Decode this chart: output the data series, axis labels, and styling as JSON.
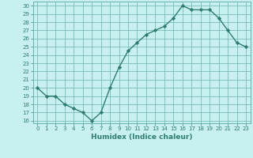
{
  "x": [
    0,
    1,
    2,
    3,
    4,
    5,
    6,
    7,
    8,
    9,
    10,
    11,
    12,
    13,
    14,
    15,
    16,
    17,
    18,
    19,
    20,
    21,
    22,
    23
  ],
  "y": [
    20,
    19,
    19,
    18,
    17.5,
    17,
    16,
    17,
    20,
    22.5,
    24.5,
    25.5,
    26.5,
    27,
    27.5,
    28.5,
    30,
    29.5,
    29.5,
    29.5,
    28.5,
    27,
    25.5,
    25
  ],
  "line_color": "#2e7d70",
  "marker": "D",
  "marker_size": 2.2,
  "background_color": "#c8f0f0",
  "grid_color": "#6ab0b0",
  "xlabel": "Humidex (Indice chaleur)",
  "xlim": [
    -0.5,
    23.5
  ],
  "ylim": [
    15.7,
    30.5
  ],
  "yticks": [
    16,
    17,
    18,
    19,
    20,
    21,
    22,
    23,
    24,
    25,
    26,
    27,
    28,
    29,
    30
  ],
  "xticks": [
    0,
    1,
    2,
    3,
    4,
    5,
    6,
    7,
    8,
    9,
    10,
    11,
    12,
    13,
    14,
    15,
    16,
    17,
    18,
    19,
    20,
    21,
    22,
    23
  ],
  "tick_fontsize": 5.0,
  "label_fontsize": 6.5,
  "line_width": 1.0
}
